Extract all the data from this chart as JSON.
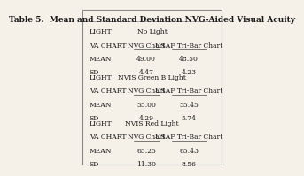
{
  "title": "Table 5.  Mean and Standard Deviation NVG-Aided Visual Acuity",
  "sections": [
    {
      "light_label": "LIGHT",
      "light_condition": "No Light",
      "va_label": "VA CHART",
      "col1_header": "NVG Chart",
      "col2_header": "USAF Tri-Bar Chart",
      "mean_label": "MEAN",
      "sd_label": "SD",
      "mean1": "49.00",
      "mean2": "48.50",
      "sd1": "4.47",
      "sd2": "4.23"
    },
    {
      "light_label": "LIGHT",
      "light_condition": "NVIS Green B Light",
      "va_label": "VA CHART",
      "col1_header": "NVG Chart",
      "col2_header": "USAF Tri-Bar Chart",
      "mean_label": "MEAN",
      "sd_label": "SD",
      "mean1": "55.00",
      "mean2": "55.45",
      "sd1": "4.29",
      "sd2": "5.74"
    },
    {
      "light_label": "LIGHT",
      "light_condition": "NVIS Red Light",
      "va_label": "VA CHART",
      "col1_header": "NVG Chart",
      "col2_header": "USAF Tri-Bar Chart",
      "mean_label": "MEAN",
      "sd_label": "SD",
      "mean1": "65.25",
      "mean2": "65.43",
      "sd1": "11.30",
      "sd2": "8.56"
    }
  ],
  "bg_color": "#f5f0e8",
  "text_color": "#1a1a1a",
  "title_fontsize": 6.5,
  "body_fontsize": 5.5
}
